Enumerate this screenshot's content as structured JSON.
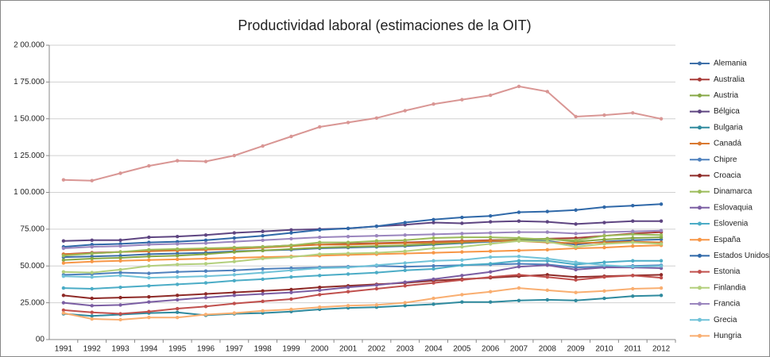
{
  "chart_data": {
    "type": "line",
    "title": "Productividad laboral (estimaciones de la OIT)",
    "categories": [
      "1991",
      "1992",
      "1993",
      "1994",
      "1995",
      "1996",
      "1997",
      "1998",
      "1999",
      "2000",
      "2001",
      "2002",
      "2003",
      "2004",
      "2005",
      "2006",
      "2007",
      "2008",
      "2009",
      "2010",
      "2011",
      "2012"
    ],
    "ylim": [
      0,
      200000
    ],
    "yticks": [
      {
        "value": 0,
        "label": "00"
      },
      {
        "value": 25000,
        "label": "25.000"
      },
      {
        "value": 50000,
        "label": "50.000"
      },
      {
        "value": 75000,
        "label": "75.000"
      },
      {
        "value": 100000,
        "label": "1 00.000"
      },
      {
        "value": 125000,
        "label": "1 25.000"
      },
      {
        "value": 150000,
        "label": "1 50.000"
      },
      {
        "value": 175000,
        "label": "1 75.000"
      },
      {
        "value": 200000,
        "label": "2 00.000"
      }
    ],
    "grid": true,
    "legend": "right",
    "series": [
      {
        "name": "Alemania",
        "color": "#3e6fa8",
        "values": [
          56000,
          56500,
          57000,
          58000,
          58500,
          59000,
          60000,
          60500,
          61000,
          62000,
          62500,
          63000,
          63500,
          64500,
          65500,
          66500,
          67500,
          67000,
          64500,
          66500,
          67500,
          68000
        ]
      },
      {
        "name": "Australia",
        "color": "#a83c39",
        "values": [
          58000,
          59000,
          59500,
          60500,
          61000,
          61500,
          62500,
          63000,
          64000,
          64500,
          65000,
          65500,
          66000,
          66500,
          67000,
          67500,
          68000,
          68500,
          69000,
          70500,
          72000,
          73000
        ]
      },
      {
        "name": "Austria",
        "color": "#86a846",
        "values": [
          54000,
          55000,
          55500,
          56500,
          57000,
          58000,
          59500,
          60500,
          61500,
          62500,
          63000,
          63500,
          64000,
          65000,
          66000,
          67000,
          68000,
          68500,
          66500,
          68000,
          69000,
          69500
        ]
      },
      {
        "name": "Bélgica",
        "color": "#5e4581",
        "values": [
          67000,
          67500,
          67500,
          69500,
          70000,
          71000,
          72500,
          73500,
          74500,
          75000,
          75500,
          77000,
          78000,
          79500,
          79000,
          80000,
          80500,
          80000,
          78500,
          79500,
          80500,
          80500
        ]
      },
      {
        "name": "Bulgaria",
        "color": "#2f8a9e",
        "values": [
          17500,
          16000,
          17000,
          18000,
          18500,
          16500,
          17500,
          18000,
          19000,
          20500,
          21500,
          22000,
          23000,
          24000,
          25500,
          25500,
          26500,
          27000,
          26500,
          28000,
          29500,
          30000
        ]
      },
      {
        "name": "Canadá",
        "color": "#d9782f",
        "values": [
          58000,
          58500,
          59500,
          60000,
          60500,
          61000,
          61500,
          62500,
          63500,
          64500,
          64500,
          65000,
          65500,
          66000,
          66500,
          67000,
          67000,
          66000,
          65500,
          66000,
          66500,
          66000
        ]
      },
      {
        "name": "Chipre",
        "color": "#4f81bd",
        "values": [
          44000,
          44500,
          45500,
          45000,
          46000,
          46500,
          47000,
          48000,
          48500,
          49000,
          49500,
          50000,
          49500,
          50000,
          50500,
          51000,
          51500,
          51000,
          49000,
          49500,
          50000,
          50500
        ]
      },
      {
        "name": "Croacia",
        "color": "#8e2a27",
        "values": [
          30000,
          28000,
          28500,
          29000,
          30000,
          31000,
          32000,
          33000,
          34000,
          35500,
          36500,
          37500,
          38500,
          40000,
          41000,
          42000,
          43000,
          44000,
          42500,
          43000,
          43500,
          44000
        ]
      },
      {
        "name": "Dinamarca",
        "color": "#9bbb59",
        "values": [
          57000,
          58500,
          59500,
          61000,
          61500,
          62000,
          62500,
          63000,
          64000,
          66000,
          66000,
          67000,
          67500,
          69000,
          69500,
          69500,
          69000,
          68000,
          67500,
          70500,
          71500,
          71000
        ]
      },
      {
        "name": "Eslovaquia",
        "color": "#7b5ea3",
        "values": [
          25000,
          23000,
          23500,
          25500,
          27000,
          28500,
          30000,
          31000,
          32000,
          33500,
          35500,
          37000,
          39000,
          41000,
          43500,
          46000,
          49500,
          50500,
          47500,
          49000,
          49000,
          48500
        ]
      },
      {
        "name": "Eslovenia",
        "color": "#4bacc6",
        "values": [
          35000,
          34500,
          35500,
          36500,
          37500,
          38500,
          40000,
          41000,
          42500,
          43500,
          44500,
          45500,
          47000,
          48000,
          50500,
          51500,
          53500,
          53500,
          51000,
          52500,
          53500,
          53500
        ]
      },
      {
        "name": "España",
        "color": "#f79646",
        "values": [
          52000,
          53000,
          53500,
          54000,
          54500,
          55000,
          55500,
          56000,
          56500,
          57000,
          57500,
          58000,
          58500,
          59000,
          59500,
          60000,
          60500,
          61000,
          62000,
          62500,
          63500,
          64000
        ]
      },
      {
        "name": "Estados Unidos",
        "color": "#2f68a8",
        "values": [
          63000,
          64500,
          65000,
          66000,
          66500,
          67500,
          69000,
          70500,
          72500,
          74500,
          75500,
          77000,
          79500,
          81500,
          83000,
          84000,
          86500,
          87000,
          88000,
          90000,
          91000,
          92000
        ]
      },
      {
        "name": "Estonia",
        "color": "#c0504d",
        "values": [
          20000,
          18500,
          17500,
          19000,
          21000,
          22500,
          24500,
          26000,
          27500,
          30500,
          32500,
          34500,
          36500,
          38500,
          40500,
          42500,
          44000,
          42500,
          40500,
          42500,
          43500,
          42000
        ]
      },
      {
        "name": "Finlandia",
        "color": "#b3cf7d",
        "values": [
          46000,
          45500,
          47500,
          50000,
          51000,
          51500,
          53000,
          55000,
          56000,
          58000,
          58500,
          59000,
          60000,
          62000,
          63000,
          65000,
          67000,
          66500,
          63000,
          65000,
          66000,
          65000
        ]
      },
      {
        "name": "Francia",
        "color": "#9a85be",
        "values": [
          62000,
          63000,
          63500,
          64500,
          65000,
          65500,
          66500,
          67500,
          68500,
          69500,
          70000,
          70500,
          71000,
          71500,
          72000,
          72500,
          73000,
          73000,
          72000,
          73000,
          73500,
          74000
        ]
      },
      {
        "name": "Grecia",
        "color": "#70c2d8",
        "values": [
          43000,
          42500,
          43500,
          42000,
          42500,
          43000,
          44000,
          45500,
          47000,
          48500,
          49000,
          50500,
          52000,
          53500,
          54000,
          56000,
          56500,
          55000,
          52500,
          50500,
          49500,
          50000
        ]
      },
      {
        "name": "Hungria",
        "color": "#f9ae70",
        "values": [
          18000,
          14000,
          13500,
          15000,
          15000,
          17000,
          18000,
          19500,
          20500,
          22000,
          23000,
          23500,
          25000,
          28000,
          30500,
          32500,
          35000,
          33500,
          32000,
          33000,
          34500,
          35000
        ]
      },
      {
        "name": null,
        "color": "#d99694",
        "values": [
          108500,
          108000,
          113000,
          118000,
          121500,
          121000,
          125000,
          131500,
          138000,
          144500,
          147500,
          150500,
          155500,
          160000,
          163000,
          166000,
          172000,
          168500,
          151500,
          152500,
          154000,
          150000
        ]
      }
    ]
  }
}
